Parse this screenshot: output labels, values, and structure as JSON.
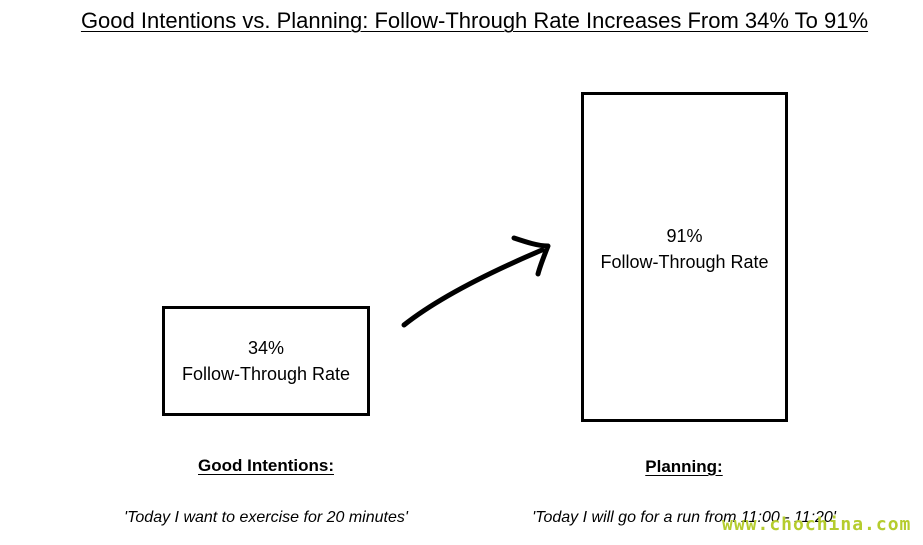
{
  "chart_data": {
    "type": "bar",
    "title": "Good Intentions vs. Planning: Follow-Through Rate Increases From 34% To 91%",
    "categories": [
      "Good Intentions:",
      "Planning:"
    ],
    "values": [
      34,
      91
    ],
    "value_labels": [
      "34%",
      "91%"
    ],
    "metric_label": "Follow-Through Rate",
    "examples": [
      "'Today I want to exercise for 20 minutes'",
      "'Today I will go for a run from 11:00 - 11:20'"
    ],
    "ylim": [
      0,
      100
    ],
    "grid": false,
    "legend": "none",
    "annotation": "arrow from first bar to second bar"
  },
  "watermark": "www.chochina.com",
  "colors": {
    "ink": "#000000",
    "background": "#ffffff",
    "watermark": "#b5cc2e"
  }
}
